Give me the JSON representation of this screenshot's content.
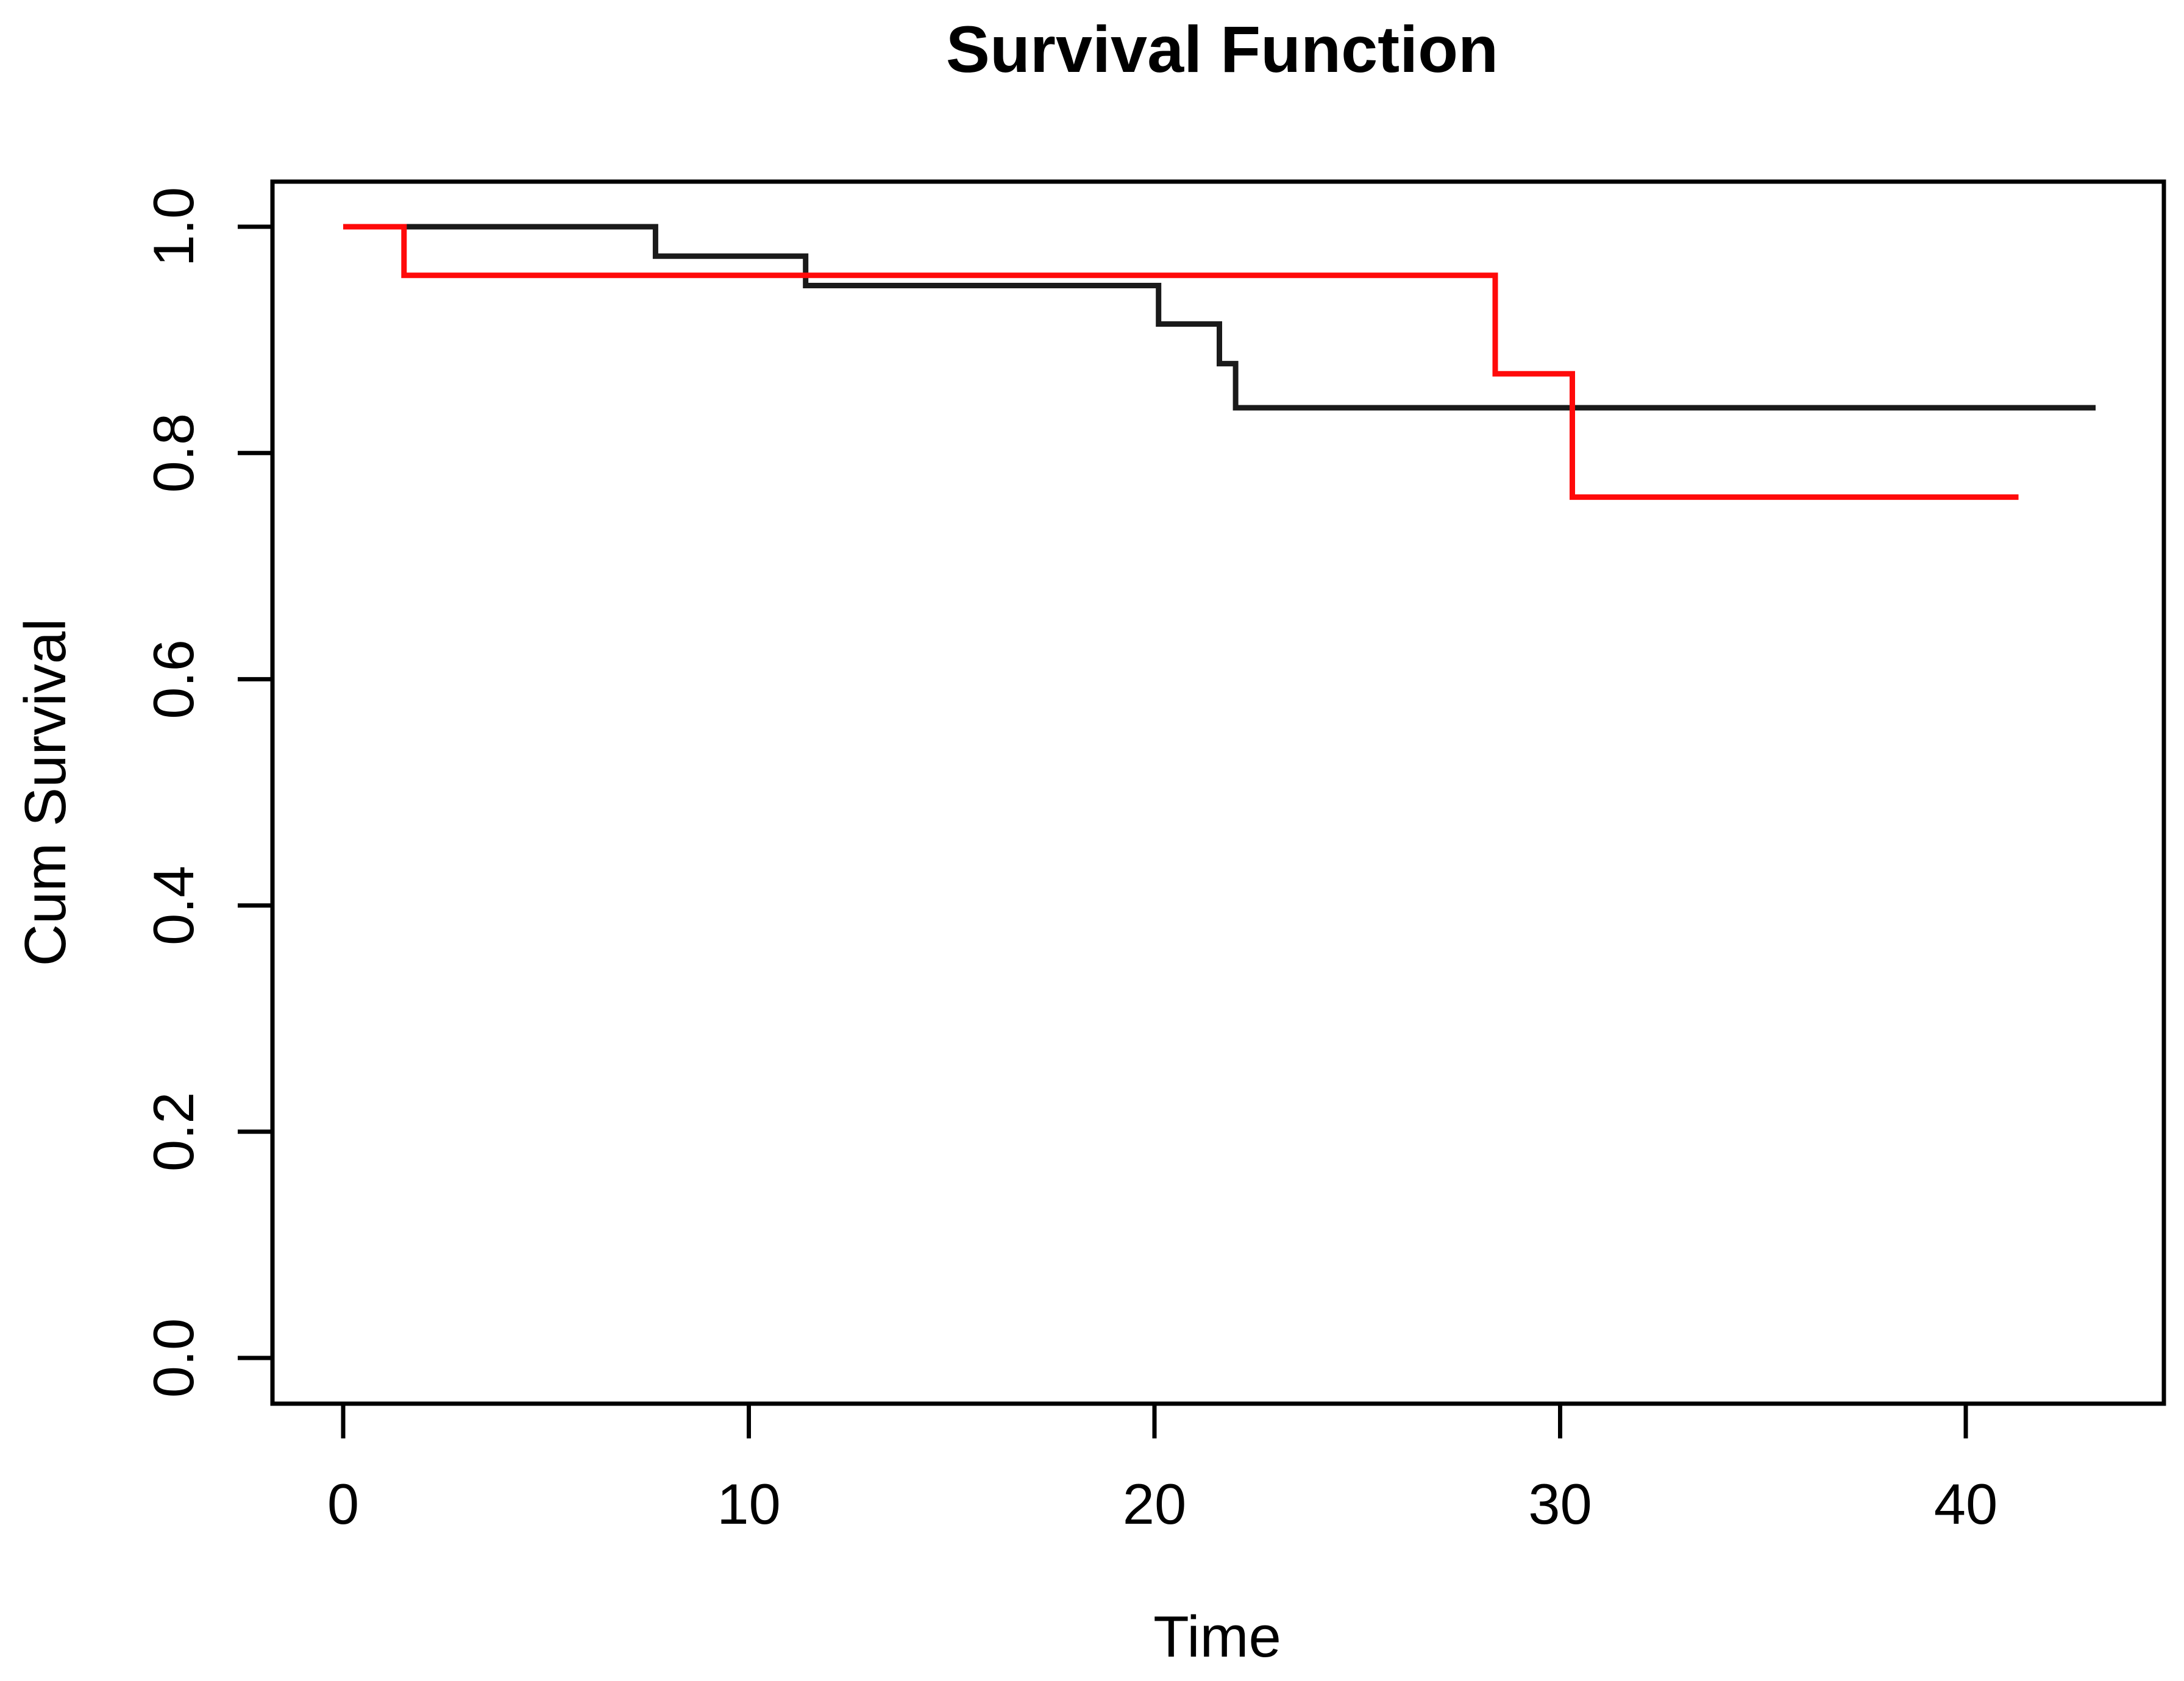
{
  "figure": {
    "background": "#ffffff",
    "axis_color": "#000000"
  },
  "chart_data": {
    "type": "line",
    "subtype": "kaplan-meier-step",
    "title": "Survival Function",
    "xlabel": "Time",
    "ylabel": "Cum Survival",
    "xlim": [
      -1.75,
      44.9
    ],
    "ylim": [
      -0.04,
      1.04
    ],
    "grid": false,
    "legend": "none",
    "x_ticks": [
      {
        "value": 0,
        "label": "0"
      },
      {
        "value": 10,
        "label": "10"
      },
      {
        "value": 20,
        "label": "20"
      },
      {
        "value": 30,
        "label": "30"
      },
      {
        "value": 40,
        "label": "40"
      }
    ],
    "y_ticks": [
      {
        "value": 1.0,
        "label": "1.0"
      },
      {
        "value": 0.8,
        "label": "0.8"
      },
      {
        "value": 0.6,
        "label": "0.6"
      },
      {
        "value": 0.4,
        "label": "0.4"
      },
      {
        "value": 0.2,
        "label": "0.2"
      },
      {
        "value": 0.0,
        "label": "0.0"
      }
    ],
    "series": [
      {
        "name": "group-1-black",
        "color": "#1a1a1a",
        "stroke_width": 9,
        "points": [
          [
            0,
            1.0
          ],
          [
            7.7,
            1.0
          ],
          [
            7.7,
            0.974
          ],
          [
            11.4,
            0.974
          ],
          [
            11.4,
            0.948
          ],
          [
            20.1,
            0.948
          ],
          [
            20.1,
            0.914
          ],
          [
            21.6,
            0.914
          ],
          [
            21.6,
            0.879
          ],
          [
            22.0,
            0.879
          ],
          [
            22.0,
            0.84
          ],
          [
            43.2,
            0.84
          ]
        ]
      },
      {
        "name": "group-2-red",
        "color": "#ff0a0a",
        "stroke_width": 9,
        "points": [
          [
            0,
            1.0
          ],
          [
            1.5,
            1.0
          ],
          [
            1.5,
            0.957
          ],
          [
            28.4,
            0.957
          ],
          [
            28.4,
            0.87
          ],
          [
            30.3,
            0.87
          ],
          [
            30.3,
            0.761
          ],
          [
            41.3,
            0.761
          ]
        ]
      }
    ]
  }
}
